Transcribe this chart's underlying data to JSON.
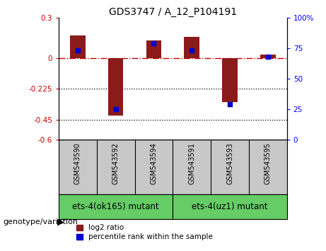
{
  "title": "GDS3747 / A_12_P104191",
  "samples": [
    "GSM543590",
    "GSM543592",
    "GSM543594",
    "GSM543591",
    "GSM543593",
    "GSM543595"
  ],
  "log2_ratio": [
    0.17,
    -0.42,
    0.13,
    0.16,
    -0.32,
    0.03
  ],
  "percentile_rank": [
    73,
    25,
    79,
    73,
    29,
    68
  ],
  "ylim_left": [
    -0.6,
    0.3
  ],
  "ylim_right": [
    0,
    100
  ],
  "yticks_left": [
    0.3,
    0.0,
    -0.225,
    -0.45,
    -0.6
  ],
  "ytick_labels_left": [
    "0.3",
    "0",
    "-0.225",
    "-0.45",
    "-0.6"
  ],
  "yticks_right": [
    100,
    75,
    50,
    25,
    0
  ],
  "ytick_labels_right": [
    "100%",
    "75",
    "50",
    "25",
    "0"
  ],
  "hline_y": 0,
  "dotted_lines": [
    -0.225,
    -0.45
  ],
  "bar_color": "#8B1A1A",
  "dot_color": "#0000CC",
  "group1_label": "ets-4(ok165) mutant",
  "group2_label": "ets-4(uz1) mutant",
  "group1_indices": [
    0,
    1,
    2
  ],
  "group2_indices": [
    3,
    4,
    5
  ],
  "sample_bg": "#c8c8c8",
  "group_bg": "#66cc66",
  "genotype_label": "genotype/variation",
  "legend_log2": "log2 ratio",
  "legend_pct": "percentile rank within the sample",
  "bar_width": 0.4,
  "dot_size": 25,
  "figsize": [
    4.61,
    3.54
  ],
  "dpi": 100
}
